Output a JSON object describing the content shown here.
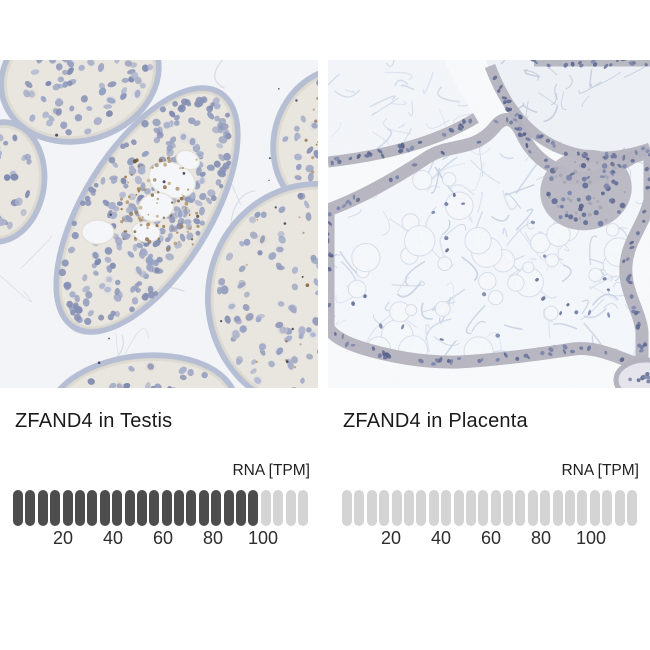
{
  "figure": {
    "panels": [
      {
        "id": "testis",
        "title": "ZFAND4 in Testis",
        "rna_unit_label": "RNA [TPM]",
        "gauge": {
          "segments_total": 24,
          "segments_filled": 20,
          "tpm_per_segment": 5,
          "tick_labels": [
            "20",
            "40",
            "60",
            "80",
            "100"
          ]
        }
      },
      {
        "id": "placenta",
        "title": "ZFAND4 in Placenta",
        "rna_unit_label": "RNA [TPM]",
        "gauge": {
          "segments_total": 24,
          "segments_filled": 0,
          "tpm_per_segment": 5,
          "tick_labels": [
            "20",
            "40",
            "60",
            "80",
            "100"
          ]
        }
      }
    ]
  },
  "chart_data": [
    {
      "type": "bar",
      "title": "ZFAND4 in Testis",
      "ylabel": "RNA [TPM]",
      "categories": [
        "Testis"
      ],
      "values": [
        100
      ],
      "segments_total": 24,
      "segments_filled": 20,
      "segment_value": 5,
      "axis_ticks": [
        20,
        40,
        60,
        80,
        100
      ],
      "legend_position": "none",
      "note": "20 of 24 segments filled; dark segments reach the 100 TPM tick"
    },
    {
      "type": "bar",
      "title": "ZFAND4 in Placenta",
      "ylabel": "RNA [TPM]",
      "categories": [
        "Placenta"
      ],
      "values": [
        0
      ],
      "segments_total": 24,
      "segments_filled": 0,
      "segment_value": 5,
      "axis_ticks": [
        20,
        40,
        60,
        80,
        100
      ],
      "legend_position": "none",
      "note": "no segments filled; expression near 0 TPM"
    }
  ],
  "colors": {
    "segment_filled": "#4d4d4d",
    "segment_empty": "#d4d4d4",
    "title_text": "#1a1a1a",
    "tick_text": "#2d2d2d"
  }
}
